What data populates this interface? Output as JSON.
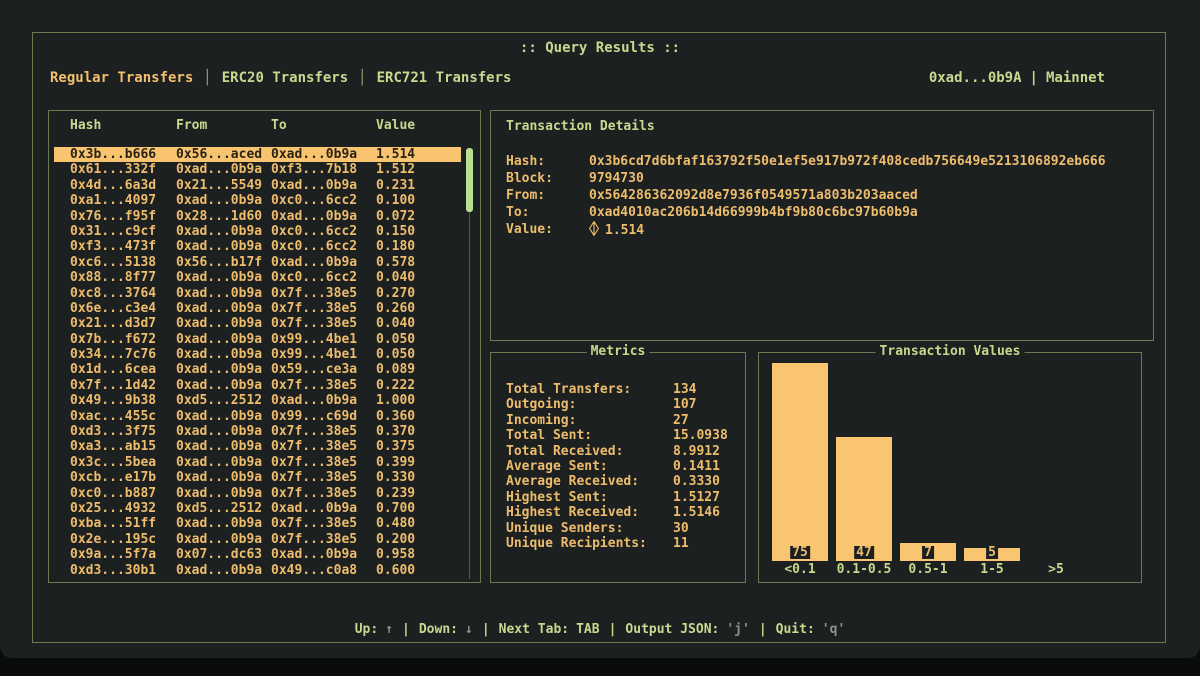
{
  "window": {
    "title": ":: Query Results ::"
  },
  "tab_separator": "│",
  "tabs": [
    {
      "id": "regular-transfers",
      "label": "Regular Transfers",
      "active": true
    },
    {
      "id": "erc20-transfers",
      "label": "ERC20 Transfers",
      "active": false
    },
    {
      "id": "erc721-transfers",
      "label": "ERC721 Transfers",
      "active": false
    }
  ],
  "account": {
    "address": "0xad...0b9A",
    "separator": "|",
    "network": "Mainnet"
  },
  "table": {
    "headers": [
      "Hash",
      "From",
      "To",
      "Value"
    ],
    "selected_index": 0,
    "rows": [
      {
        "hash": "0x3b...b666",
        "from": "0x56...aced",
        "to": "0xad...0b9a",
        "value": "1.514"
      },
      {
        "hash": "0x61...332f",
        "from": "0xad...0b9a",
        "to": "0xf3...7b18",
        "value": "1.512"
      },
      {
        "hash": "0x4d...6a3d",
        "from": "0x21...5549",
        "to": "0xad...0b9a",
        "value": "0.231"
      },
      {
        "hash": "0xa1...4097",
        "from": "0xad...0b9a",
        "to": "0xc0...6cc2",
        "value": "0.100"
      },
      {
        "hash": "0x76...f95f",
        "from": "0x28...1d60",
        "to": "0xad...0b9a",
        "value": "0.072"
      },
      {
        "hash": "0x31...c9cf",
        "from": "0xad...0b9a",
        "to": "0xc0...6cc2",
        "value": "0.150"
      },
      {
        "hash": "0xf3...473f",
        "from": "0xad...0b9a",
        "to": "0xc0...6cc2",
        "value": "0.180"
      },
      {
        "hash": "0xc6...5138",
        "from": "0x56...b17f",
        "to": "0xad...0b9a",
        "value": "0.578"
      },
      {
        "hash": "0x88...8f77",
        "from": "0xad...0b9a",
        "to": "0xc0...6cc2",
        "value": "0.040"
      },
      {
        "hash": "0xc8...3764",
        "from": "0xad...0b9a",
        "to": "0x7f...38e5",
        "value": "0.270"
      },
      {
        "hash": "0x6e...c3e4",
        "from": "0xad...0b9a",
        "to": "0x7f...38e5",
        "value": "0.260"
      },
      {
        "hash": "0x21...d3d7",
        "from": "0xad...0b9a",
        "to": "0x7f...38e5",
        "value": "0.040"
      },
      {
        "hash": "0x7b...f672",
        "from": "0xad...0b9a",
        "to": "0x99...4be1",
        "value": "0.050"
      },
      {
        "hash": "0x34...7c76",
        "from": "0xad...0b9a",
        "to": "0x99...4be1",
        "value": "0.050"
      },
      {
        "hash": "0x1d...6cea",
        "from": "0xad...0b9a",
        "to": "0x59...ce3a",
        "value": "0.089"
      },
      {
        "hash": "0x7f...1d42",
        "from": "0xad...0b9a",
        "to": "0x7f...38e5",
        "value": "0.222"
      },
      {
        "hash": "0x49...9b38",
        "from": "0xd5...2512",
        "to": "0xad...0b9a",
        "value": "1.000"
      },
      {
        "hash": "0xac...455c",
        "from": "0xad...0b9a",
        "to": "0x99...c69d",
        "value": "0.360"
      },
      {
        "hash": "0xd3...3f75",
        "from": "0xad...0b9a",
        "to": "0x7f...38e5",
        "value": "0.370"
      },
      {
        "hash": "0xa3...ab15",
        "from": "0xad...0b9a",
        "to": "0x7f...38e5",
        "value": "0.375"
      },
      {
        "hash": "0x3c...5bea",
        "from": "0xad...0b9a",
        "to": "0x7f...38e5",
        "value": "0.399"
      },
      {
        "hash": "0xcb...e17b",
        "from": "0xad...0b9a",
        "to": "0x7f...38e5",
        "value": "0.330"
      },
      {
        "hash": "0xc0...b887",
        "from": "0xad...0b9a",
        "to": "0x7f...38e5",
        "value": "0.239"
      },
      {
        "hash": "0x25...4932",
        "from": "0xd5...2512",
        "to": "0xad...0b9a",
        "value": "0.700"
      },
      {
        "hash": "0xba...51ff",
        "from": "0xad...0b9a",
        "to": "0x7f...38e5",
        "value": "0.480"
      },
      {
        "hash": "0x2e...195c",
        "from": "0xad...0b9a",
        "to": "0x7f...38e5",
        "value": "0.200"
      },
      {
        "hash": "0x9a...5f7a",
        "from": "0x07...dc63",
        "to": "0xad...0b9a",
        "value": "0.958"
      },
      {
        "hash": "0xd3...30b1",
        "from": "0xad...0b9a",
        "to": "0x49...c0a8",
        "value": "0.600"
      }
    ]
  },
  "details": {
    "title": "Transaction Details",
    "fields": [
      {
        "label": "Hash:",
        "value": "0x3b6cd7d6bfaf163792f50e1ef5e917b972f408cedb756649e5213106892eb666",
        "eth": false
      },
      {
        "label": "Block:",
        "value": "9794730",
        "eth": false
      },
      {
        "label": "From:",
        "value": "0x564286362092d8e7936f0549571a803b203aaced",
        "eth": false
      },
      {
        "label": "To:",
        "value": "0xad4010ac206b14d66999b4bf9b80c6bc97b60b9a",
        "eth": false
      },
      {
        "label": "Value:",
        "value": "1.514",
        "eth": true
      }
    ]
  },
  "metrics": {
    "title": "Metrics",
    "items": [
      {
        "label": "Total Transfers:",
        "value": "134"
      },
      {
        "label": "Outgoing:",
        "value": "107"
      },
      {
        "label": "Incoming:",
        "value": "27"
      },
      {
        "label": "Total Sent:",
        "value": "15.0938"
      },
      {
        "label": "Total Received:",
        "value": "8.9912"
      },
      {
        "label": "Average Sent:",
        "value": "0.1411"
      },
      {
        "label": "Average Received:",
        "value": "0.3330"
      },
      {
        "label": "Highest Sent:",
        "value": "1.5127"
      },
      {
        "label": "Highest Received:",
        "value": "1.5146"
      },
      {
        "label": "Unique Senders:",
        "value": "30"
      },
      {
        "label": "Unique Recipients:",
        "value": "11"
      }
    ]
  },
  "chart_data": {
    "type": "bar",
    "title": "Transaction Values",
    "categories": [
      "<0.1",
      "0.1-0.5",
      "0.5-1",
      "1-5",
      ">5"
    ],
    "values": [
      75,
      47,
      7,
      5,
      0
    ],
    "xlabel": "",
    "ylabel": "",
    "ylim": [
      0,
      75
    ],
    "grid": false,
    "legend": "none",
    "bar_color": "#f9c571",
    "value_labels_shown": [
      75,
      47,
      7,
      5
    ]
  },
  "footer": {
    "separator": "|",
    "segments": [
      {
        "label": "Up:",
        "key": "↑",
        "highlight": false
      },
      {
        "label": "Down:",
        "key": "↓",
        "highlight": false
      },
      {
        "label": "Next Tab:",
        "key": "TAB",
        "highlight": true
      },
      {
        "label": "Output JSON:",
        "key": "'j'",
        "highlight": false
      },
      {
        "label": "Quit:",
        "key": "'q'",
        "highlight": false
      }
    ]
  },
  "colors": {
    "background": "#1d2021",
    "border_green": "#6d7a50",
    "text_green": "#c6da8e",
    "text_amber": "#eebd6c",
    "selection": "#f9c46f",
    "bar_fill": "#f9c571",
    "scrollbar_thumb": "#b9e093",
    "key_hint_gray": "#8f948a"
  }
}
